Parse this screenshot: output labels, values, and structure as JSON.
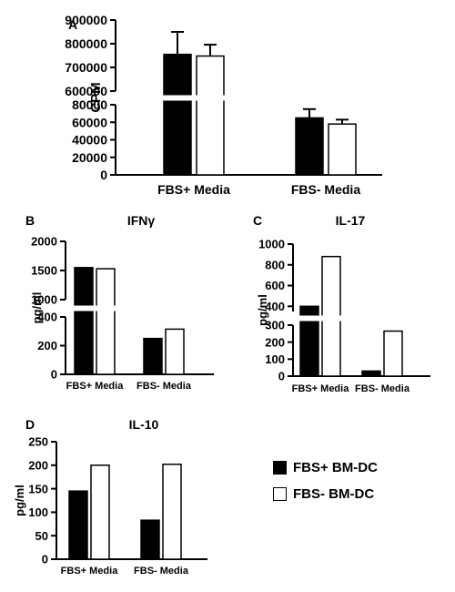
{
  "chart_data": [
    {
      "type": "bar",
      "panel": "A",
      "title": "",
      "ylabel": "CPM",
      "xlabel": "",
      "axis_break": {
        "lower": [
          0,
          80000
        ],
        "upper": [
          600000,
          900000
        ]
      },
      "yticks_lower": [
        0,
        20000,
        40000,
        60000,
        80000
      ],
      "yticks_upper": [
        600000,
        700000,
        800000,
        900000
      ],
      "ytick_labels_lower": [
        "0",
        "20000",
        "40000",
        "60000",
        "80000"
      ],
      "ytick_labels_upper": [
        "600000",
        "700000",
        "800000",
        "900000"
      ],
      "categories": [
        "FBS+ Media",
        "FBS- Media"
      ],
      "series": [
        {
          "name": "FBS+ BM-DC",
          "fill": "#000000",
          "values": [
            755000,
            65000
          ],
          "errors": [
            95000,
            10000
          ]
        },
        {
          "name": "FBS- BM-DC",
          "fill": "#ffffff",
          "values": [
            748000,
            58000
          ],
          "errors": [
            48000,
            5000
          ]
        }
      ]
    },
    {
      "type": "bar",
      "panel": "B",
      "title": "IFNγ",
      "ylabel": "pg/ml",
      "xlabel": "",
      "axis_break": {
        "lower": [
          0,
          400
        ],
        "upper": [
          1000,
          2000
        ]
      },
      "yticks_lower": [
        0,
        200,
        400
      ],
      "yticks_upper": [
        1000,
        1500,
        2000
      ],
      "ytick_labels_lower": [
        "0",
        "200",
        "400"
      ],
      "ytick_labels_upper": [
        "1000",
        "1500",
        "2000"
      ],
      "categories": [
        "FBS+ Media",
        "FBS- Media"
      ],
      "series": [
        {
          "name": "FBS+ BM-DC",
          "fill": "#000000",
          "values": [
            1550,
            250
          ]
        },
        {
          "name": "FBS- BM-DC",
          "fill": "#ffffff",
          "values": [
            1530,
            315
          ]
        }
      ]
    },
    {
      "type": "bar",
      "panel": "C",
      "title": "IL-17",
      "ylabel": "pg/ml",
      "xlabel": "",
      "axis_break": {
        "lower": [
          0,
          300
        ],
        "upper": [
          350,
          1000
        ]
      },
      "yticks_lower": [
        0,
        100,
        200,
        300
      ],
      "yticks_upper": [
        400,
        600,
        800,
        1000
      ],
      "ytick_labels_lower": [
        "0",
        "100",
        "200",
        "300"
      ],
      "ytick_labels_upper": [
        "400",
        "600",
        "800",
        "1000"
      ],
      "categories": [
        "FBS+ Media",
        "FBS- Media"
      ],
      "series": [
        {
          "name": "FBS+ BM-DC",
          "fill": "#000000",
          "values": [
            400,
            30
          ]
        },
        {
          "name": "FBS- BM-DC",
          "fill": "#ffffff",
          "values": [
            880,
            265
          ]
        }
      ]
    },
    {
      "type": "bar",
      "panel": "D",
      "title": "IL-10",
      "ylabel": "pg/ml",
      "xlabel": "",
      "ylim": [
        0,
        250
      ],
      "yticks": [
        0,
        50,
        100,
        150,
        200,
        250
      ],
      "ytick_labels": [
        "0",
        "50",
        "100",
        "150",
        "200",
        "250"
      ],
      "categories": [
        "FBS+ Media",
        "FBS- Media"
      ],
      "series": [
        {
          "name": "FBS+ BM-DC",
          "fill": "#000000",
          "values": [
            145,
            83
          ]
        },
        {
          "name": "FBS- BM-DC",
          "fill": "#ffffff",
          "values": [
            200,
            202
          ]
        }
      ]
    }
  ],
  "legend": {
    "placement": "bottom-right",
    "items": [
      {
        "label": "FBS+ BM-DC",
        "fill": "#000000"
      },
      {
        "label": "FBS- BM-DC",
        "fill": "#ffffff"
      }
    ]
  }
}
